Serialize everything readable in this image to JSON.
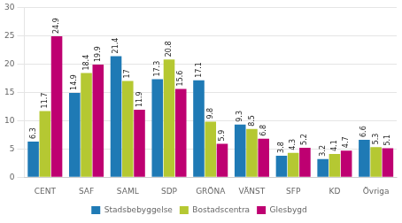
{
  "chart_data": {
    "type": "bar",
    "categories": [
      "CENT",
      "SAF",
      "SAML",
      "SDP",
      "GRÖNA",
      "VÄNST",
      "SFP",
      "KD",
      "Övriga"
    ],
    "series": [
      {
        "name": "Stadsbebyggelse",
        "color": "#1f7ab5",
        "values": [
          6.3,
          14.9,
          21.4,
          17.3,
          17.1,
          9.3,
          3.8,
          3.2,
          6.6
        ]
      },
      {
        "name": "Bostadscentra",
        "color": "#b5c832",
        "values": [
          11.7,
          18.4,
          17.0,
          20.8,
          9.8,
          8.5,
          4.3,
          4.1,
          5.3
        ]
      },
      {
        "name": "Glesbygd",
        "color": "#be0071",
        "values": [
          24.9,
          19.9,
          11.9,
          15.6,
          5.9,
          6.8,
          5.2,
          4.7,
          5.1
        ]
      }
    ],
    "ylim": [
      0,
      30
    ],
    "yticks": [
      0,
      5,
      10,
      15,
      20,
      25,
      30
    ],
    "grid": true,
    "legend": "bottom",
    "data_labels": true
  }
}
